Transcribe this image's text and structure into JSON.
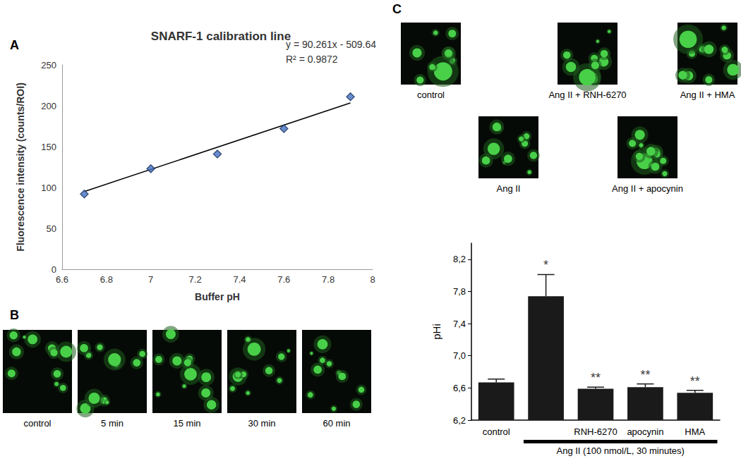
{
  "panel_labels": [
    "A",
    "B",
    "C"
  ],
  "chart_data": [
    {
      "type": "scatter",
      "title": "SNARF-1 calibration line",
      "x_label": "Buffer pH",
      "y_label": "Fluorescence intensity (counts/ROI)",
      "x": [
        6.7,
        7.0,
        7.3,
        7.6,
        7.9
      ],
      "values": [
        92,
        123,
        141,
        172,
        211
      ],
      "color": "#4472c4",
      "marker": "diamond",
      "annotations": [
        "y = 90.261x - 509.64",
        "R² = 0.9872"
      ],
      "fit_line": {
        "x": [
          6.7,
          7.9
        ],
        "values": [
          95.1,
          203.4
        ],
        "color": "#000000"
      },
      "xlim": [
        6.6,
        8
      ],
      "xticks": [
        6.6,
        6.8,
        7,
        7.2,
        7.4,
        7.6,
        7.8,
        8
      ],
      "ylim": [
        0,
        250
      ],
      "yticks": [
        0,
        50,
        100,
        150,
        200,
        250
      ],
      "grid": false
    },
    {
      "type": "bar",
      "y_label": "pHi",
      "categories": [
        "control",
        null,
        "RNH-6270",
        "apocynin",
        "HMA"
      ],
      "values": [
        6.67,
        7.74,
        6.59,
        6.61,
        6.54
      ],
      "errors": [
        0.04,
        0.27,
        0.02,
        0.04,
        0.03
      ],
      "color": "#1a1a1a",
      "significance": [
        null,
        "*",
        "**",
        "**",
        "**"
      ],
      "group": {
        "label": "Ang II (100 nmol/L, 30 minutes)",
        "span": [
          1,
          4
        ]
      },
      "ylim": [
        6.2,
        8.4
      ],
      "yticks": [
        {
          "value": 6.2,
          "label": "6,2"
        },
        {
          "value": 6.6,
          "label": "6,6"
        },
        {
          "value": 7.0,
          "label": "7,0"
        },
        {
          "value": 7.4,
          "label": "7,4"
        },
        {
          "value": 7.8,
          "label": "7,8"
        },
        {
          "value": 8.2,
          "label": "8,2"
        }
      ],
      "grid": false
    }
  ],
  "images": {
    "B": [
      "control",
      "5 min",
      "15 min",
      "30 min",
      "60 min"
    ],
    "C": [
      "control",
      "Ang II + RNH-6270",
      "Ang II + HMA",
      "Ang II",
      "Ang II + apocynin"
    ]
  }
}
